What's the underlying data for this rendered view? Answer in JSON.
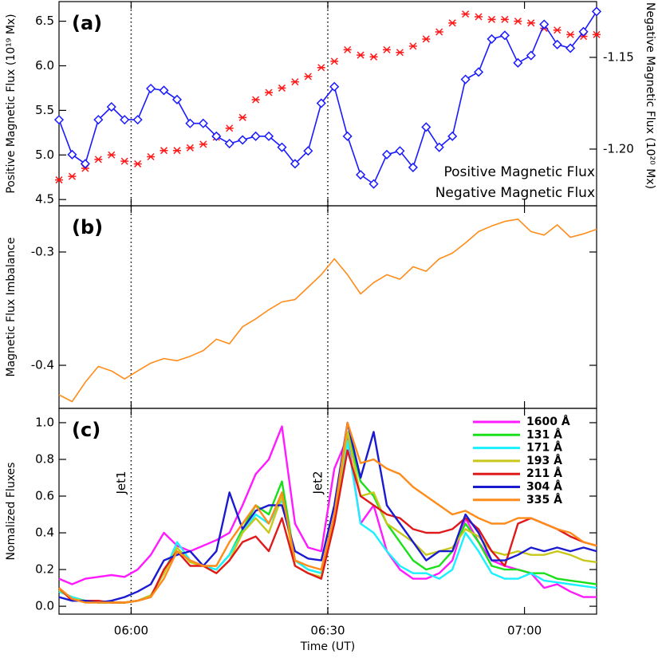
{
  "chart_data": [
    {
      "type": "line",
      "panel_label": "(a)",
      "ylabel": "Positive Magnetic Flux (10¹⁹ Mx)",
      "y2label": "Negative Magnetic Flux (10²⁰ Mx)",
      "x": [
        "05:49",
        "05:51",
        "05:53",
        "05:55",
        "05:57",
        "05:59",
        "06:01",
        "06:03",
        "06:05",
        "06:07",
        "06:09",
        "06:11",
        "06:13",
        "06:15",
        "06:17",
        "06:19",
        "06:21",
        "06:23",
        "06:25",
        "06:27",
        "06:29",
        "06:31",
        "06:33",
        "06:35",
        "06:37",
        "06:39",
        "06:41",
        "06:43",
        "06:45",
        "06:47",
        "06:49",
        "06:51",
        "06:53",
        "06:55",
        "06:57",
        "06:59",
        "07:01",
        "07:03",
        "07:05",
        "07:07",
        "07:09",
        "07:11"
      ],
      "xlim": [
        "05:49",
        "07:11"
      ],
      "xticks": [
        "06:00",
        "06:30",
        "07:00"
      ],
      "ylim": [
        4.43,
        6.72
      ],
      "yticks": [
        4.5,
        {
          "value": 5,
          "label": "5.0"
        },
        5.5,
        {
          "value": 6,
          "label": "6.0"
        },
        6.5
      ],
      "y2lim": [
        -1.2309,
        -1.1196
      ],
      "y2ticks": [
        {
          "value": -1.2,
          "label": "-1.20"
        },
        -1.15
      ],
      "vlines": [
        "06:00",
        "06:30"
      ],
      "legend": "lower right",
      "series": [
        {
          "name": "Positive Magnetic Flux",
          "color": "#ff1a1a",
          "marker": "x",
          "line": false,
          "values": [
            4.72,
            4.76,
            4.85,
            4.95,
            5.0,
            4.93,
            4.9,
            4.98,
            5.05,
            5.05,
            5.08,
            5.12,
            5.2,
            5.3,
            5.42,
            5.62,
            5.7,
            5.75,
            5.82,
            5.88,
            5.98,
            6.05,
            6.18,
            6.12,
            6.1,
            6.18,
            6.15,
            6.22,
            6.3,
            6.38,
            6.48,
            6.58,
            6.55,
            6.52,
            6.52,
            6.5,
            6.48,
            6.42,
            6.4,
            6.35,
            6.33,
            6.35
          ]
        },
        {
          "name": "Negative Magnetic Flux",
          "color": "#1a1aff",
          "marker": "diamond",
          "line": true,
          "axis": "y2",
          "values": [
            -1.184,
            -1.203,
            -1.208,
            -1.184,
            -1.177,
            -1.184,
            -1.184,
            -1.167,
            -1.168,
            -1.173,
            -1.186,
            -1.186,
            -1.193,
            -1.197,
            -1.195,
            -1.193,
            -1.193,
            -1.199,
            -1.208,
            -1.201,
            -1.175,
            -1.166,
            -1.193,
            -1.214,
            -1.219,
            -1.203,
            -1.201,
            -1.21,
            -1.188,
            -1.199,
            -1.193,
            -1.162,
            -1.158,
            -1.14,
            -1.138,
            -1.153,
            -1.149,
            -1.132,
            -1.143,
            -1.145,
            -1.136,
            -1.125
          ]
        }
      ]
    },
    {
      "type": "line",
      "panel_label": "(b)",
      "ylabel": "Magnetic Flux Imbalance",
      "x": [
        "05:49",
        "05:51",
        "05:53",
        "05:55",
        "05:57",
        "05:59",
        "06:01",
        "06:03",
        "06:05",
        "06:07",
        "06:09",
        "06:11",
        "06:13",
        "06:15",
        "06:17",
        "06:19",
        "06:21",
        "06:23",
        "06:25",
        "06:27",
        "06:29",
        "06:31",
        "06:33",
        "06:35",
        "06:37",
        "06:39",
        "06:41",
        "06:43",
        "06:45",
        "06:47",
        "06:49",
        "06:51",
        "06:53",
        "06:55",
        "06:57",
        "06:59",
        "07:01",
        "07:03",
        "07:05",
        "07:07",
        "07:09",
        "07:11"
      ],
      "xlim": [
        "05:49",
        "07:11"
      ],
      "xticks": [
        "06:00",
        "06:30",
        "07:00"
      ],
      "ylim": [
        -0.438,
        -0.2592
      ],
      "yticks": [
        -0.4,
        -0.3
      ],
      "vlines": [
        "06:00",
        "06:30"
      ],
      "series": [
        {
          "color": "#ff8c1a",
          "line": true,
          "values": [
            -0.426,
            -0.432,
            -0.415,
            -0.401,
            -0.405,
            -0.412,
            -0.405,
            -0.398,
            -0.394,
            -0.396,
            -0.392,
            -0.387,
            -0.377,
            -0.381,
            -0.366,
            -0.359,
            -0.351,
            -0.344,
            -0.342,
            -0.331,
            -0.32,
            -0.306,
            -0.32,
            -0.337,
            -0.327,
            -0.32,
            -0.324,
            -0.313,
            -0.317,
            -0.306,
            -0.301,
            -0.292,
            -0.282,
            -0.277,
            -0.273,
            -0.271,
            -0.282,
            -0.285,
            -0.276,
            -0.287,
            -0.284,
            -0.28
          ]
        }
      ]
    },
    {
      "type": "line",
      "panel_label": "(c)",
      "ylabel": "Nomalized Fluxes",
      "xlabel": "Time (UT)",
      "x": [
        "05:49",
        "05:51",
        "05:53",
        "05:55",
        "05:57",
        "05:59",
        "06:01",
        "06:03",
        "06:05",
        "06:07",
        "06:09",
        "06:11",
        "06:13",
        "06:15",
        "06:17",
        "06:19",
        "06:21",
        "06:23",
        "06:25",
        "06:27",
        "06:29",
        "06:31",
        "06:33",
        "06:35",
        "06:37",
        "06:39",
        "06:41",
        "06:43",
        "06:45",
        "06:47",
        "06:49",
        "06:51",
        "06:53",
        "06:55",
        "06:57",
        "06:59",
        "07:01",
        "07:03",
        "07:05",
        "07:07",
        "07:09",
        "07:11"
      ],
      "xlim": [
        "05:49",
        "07:11"
      ],
      "xticks": [
        "06:00",
        "06:30",
        "07:00"
      ],
      "ylim": [
        -0.043,
        1.078
      ],
      "yticks": [
        {
          "value": 0,
          "label": "0.0"
        },
        0.2,
        0.4,
        0.6,
        0.8,
        {
          "value": 1,
          "label": "1.0"
        }
      ],
      "annotations": [
        {
          "text": "Jet1",
          "x": "06:00"
        },
        {
          "text": "Jet2",
          "x": "06:30"
        }
      ],
      "legend": "upper right",
      "series": [
        {
          "name": "1600 Å",
          "color": "#ff1aff",
          "line": true,
          "values": [
            0.15,
            0.12,
            0.15,
            0.16,
            0.17,
            0.16,
            0.2,
            0.28,
            0.4,
            0.33,
            0.3,
            0.33,
            0.36,
            0.4,
            0.55,
            0.72,
            0.8,
            0.98,
            0.45,
            0.32,
            0.3,
            0.75,
            0.92,
            0.45,
            0.55,
            0.3,
            0.2,
            0.15,
            0.15,
            0.18,
            0.25,
            0.48,
            0.35,
            0.25,
            0.22,
            0.2,
            0.18,
            0.1,
            0.12,
            0.08,
            0.05,
            0.05
          ]
        },
        {
          "name": "131 Å",
          "color": "#1ae01a",
          "line": true,
          "values": [
            0.08,
            0.05,
            0.03,
            0.02,
            0.02,
            0.02,
            0.03,
            0.06,
            0.18,
            0.32,
            0.24,
            0.22,
            0.2,
            0.28,
            0.42,
            0.55,
            0.5,
            0.68,
            0.25,
            0.2,
            0.18,
            0.48,
            0.95,
            0.68,
            0.6,
            0.45,
            0.35,
            0.25,
            0.2,
            0.22,
            0.3,
            0.45,
            0.35,
            0.22,
            0.2,
            0.2,
            0.18,
            0.18,
            0.15,
            0.14,
            0.13,
            0.12
          ]
        },
        {
          "name": "171 Å",
          "color": "#1af0ff",
          "line": true,
          "values": [
            0.08,
            0.05,
            0.03,
            0.02,
            0.02,
            0.02,
            0.03,
            0.06,
            0.18,
            0.35,
            0.25,
            0.22,
            0.2,
            0.28,
            0.4,
            0.5,
            0.45,
            0.58,
            0.25,
            0.2,
            0.18,
            0.45,
            0.9,
            0.45,
            0.4,
            0.3,
            0.22,
            0.18,
            0.18,
            0.15,
            0.2,
            0.4,
            0.3,
            0.18,
            0.15,
            0.15,
            0.18,
            0.14,
            0.13,
            0.12,
            0.11,
            0.1
          ]
        },
        {
          "name": "193 Å",
          "color": "#c8c81a",
          "line": true,
          "values": [
            0.09,
            0.04,
            0.03,
            0.02,
            0.02,
            0.02,
            0.03,
            0.06,
            0.18,
            0.32,
            0.24,
            0.22,
            0.18,
            0.25,
            0.4,
            0.48,
            0.4,
            0.6,
            0.22,
            0.18,
            0.16,
            0.48,
            0.95,
            0.6,
            0.62,
            0.45,
            0.4,
            0.35,
            0.28,
            0.3,
            0.32,
            0.42,
            0.38,
            0.3,
            0.28,
            0.3,
            0.28,
            0.28,
            0.3,
            0.28,
            0.25,
            0.24
          ]
        },
        {
          "name": "211 Å",
          "color": "#e01a1a",
          "line": true,
          "values": [
            0.1,
            0.03,
            0.03,
            0.03,
            0.02,
            0.02,
            0.03,
            0.05,
            0.2,
            0.3,
            0.22,
            0.22,
            0.18,
            0.25,
            0.35,
            0.38,
            0.3,
            0.48,
            0.22,
            0.18,
            0.15,
            0.45,
            0.85,
            0.6,
            0.55,
            0.5,
            0.48,
            0.42,
            0.4,
            0.4,
            0.42,
            0.48,
            0.42,
            0.3,
            0.22,
            0.45,
            0.48,
            0.45,
            0.42,
            0.38,
            0.35,
            0.33
          ]
        },
        {
          "name": "304 Å",
          "color": "#1a1ad0",
          "line": true,
          "values": [
            0.05,
            0.03,
            0.03,
            0.02,
            0.03,
            0.05,
            0.08,
            0.12,
            0.25,
            0.28,
            0.3,
            0.22,
            0.3,
            0.62,
            0.42,
            0.52,
            0.55,
            0.55,
            0.3,
            0.26,
            0.25,
            0.55,
            1.0,
            0.7,
            0.95,
            0.55,
            0.45,
            0.35,
            0.25,
            0.3,
            0.3,
            0.5,
            0.4,
            0.25,
            0.25,
            0.28,
            0.32,
            0.3,
            0.32,
            0.3,
            0.32,
            0.3
          ]
        },
        {
          "name": "335 Å",
          "color": "#ff8c1a",
          "line": true,
          "values": [
            0.1,
            0.04,
            0.02,
            0.02,
            0.02,
            0.02,
            0.03,
            0.05,
            0.15,
            0.3,
            0.25,
            0.22,
            0.22,
            0.35,
            0.45,
            0.55,
            0.45,
            0.62,
            0.25,
            0.22,
            0.2,
            0.5,
            1.0,
            0.78,
            0.8,
            0.75,
            0.72,
            0.65,
            0.6,
            0.55,
            0.5,
            0.52,
            0.48,
            0.45,
            0.45,
            0.48,
            0.48,
            0.45,
            0.42,
            0.4,
            0.35,
            0.33
          ]
        }
      ]
    }
  ]
}
